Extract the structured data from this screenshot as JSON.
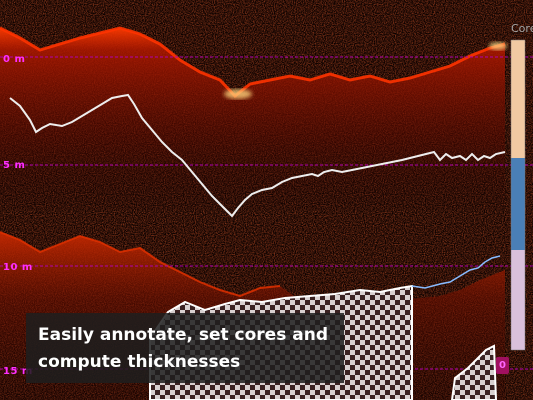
{
  "depth_labels": [
    "0 m",
    "5 m",
    "10 m",
    "15 m"
  ],
  "core_column": {
    "header": "Core",
    "segment_colors": [
      "#f1c9a2",
      "#4a7fb6",
      "#d9c0db"
    ],
    "marker": "0"
  },
  "caption": {
    "line1": "Easily annotate, set cores and",
    "line2": "compute thicknesses"
  },
  "colors": {
    "depth_gridline": "#b000b0",
    "depth_label": "#ff2fff",
    "echo_strong": "#ff2a00",
    "echo_peak": "#ffe08a",
    "trace_line": "#ffffff",
    "caption_background": "#1e1e1e"
  }
}
